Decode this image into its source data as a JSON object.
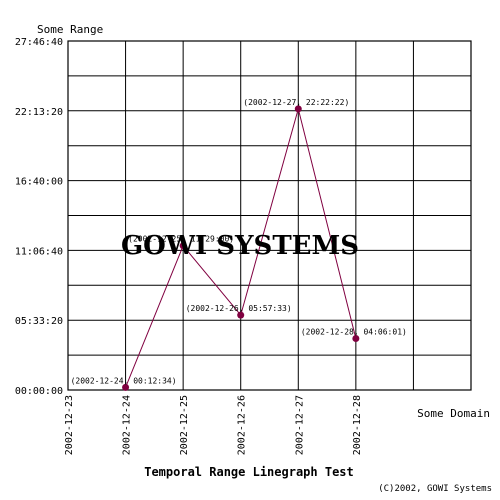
{
  "chart_data": {
    "type": "line",
    "title": "Temporal Range Linegraph Test",
    "ylabel": "Some Range",
    "xlabel": "Some Domain",
    "x_ticks": [
      "2002-12-23",
      "2002-12-24",
      "2002-12-25",
      "2002-12-26",
      "2002-12-27",
      "2002-12-28"
    ],
    "y_ticks": [
      "00:00:00",
      "05:33:20",
      "11:06:40",
      "16:40:00",
      "22:13:20",
      "27:46:40"
    ],
    "y_range_seconds": [
      0,
      100000
    ],
    "grid": true,
    "series": [
      {
        "color": "#800040",
        "points": [
          {
            "x": "2002-12-24",
            "y": "00:12:34",
            "label": "(2002-12-24, 00:12:34)"
          },
          {
            "x": "2002-12-25",
            "y": "11:29:00",
            "label": "(2002-12-25, 11:29:00)"
          },
          {
            "x": "2002-12-26",
            "y": "05:57:33",
            "label": "(2002-12-26, 05:57:33)"
          },
          {
            "x": "2002-12-27",
            "y": "22:22:22",
            "label": "(2002-12-27, 22:22:22)"
          },
          {
            "x": "2002-12-28",
            "y": "04:06:01",
            "label": "(2002-12-28, 04:06:01)"
          }
        ]
      }
    ]
  },
  "watermark": "GOWI SYSTEMS",
  "copyright": "(C)2002, GOWI Systems"
}
